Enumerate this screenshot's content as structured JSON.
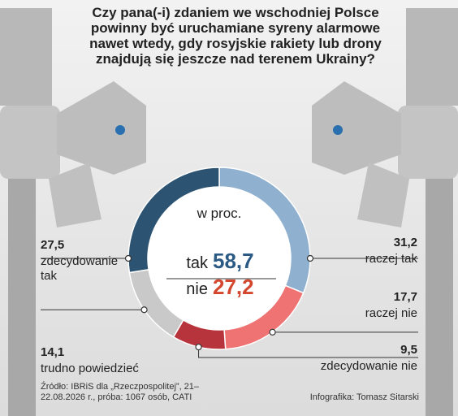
{
  "chart_data": {
    "type": "donut",
    "title": "Czy pana(-i) zdaniem we wschodniej Polsce powinny być uruchamiane syreny alarmowe nawet wtedy, gdy rosyjskie rakiety lub drony znajdują się jeszcze nad terenem Ukrainy?",
    "subtitle": "w proc.",
    "categories": [
      "raczej tak",
      "raczej nie",
      "zdecydowanie nie",
      "trudno powiedzieć",
      "zdecydowanie tak"
    ],
    "values": [
      31.2,
      17.7,
      9.5,
      14.1,
      27.5
    ],
    "value_labels": [
      "31,2",
      "17,7",
      "9,5",
      "14,1",
      "27,5"
    ],
    "colors": [
      "#8fb0cf",
      "#ef7373",
      "#b8343c",
      "#c9c9c9",
      "#2c5371"
    ],
    "summary": [
      {
        "name": "tak",
        "value": 58.7,
        "label": "58,7",
        "color": "#2b5a84"
      },
      {
        "name": "nie",
        "value": 27.2,
        "label": "27,2",
        "color": "#d4472f"
      }
    ],
    "source": "Źródło: IBRiS dla „Rzeczpospolitej”, 21–22.08.2026 r., próba: 1067 osób, CATI",
    "credit": "Infografika: Tomasz Sitarski"
  }
}
